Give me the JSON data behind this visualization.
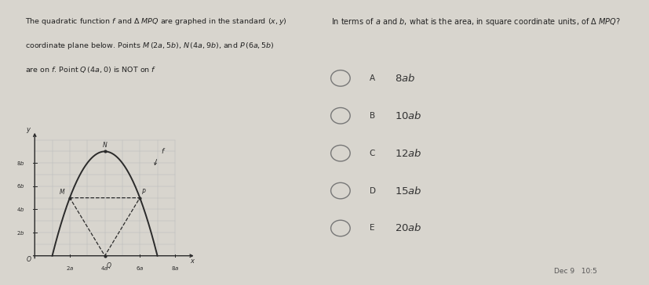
{
  "bg_color": "#d8d5ce",
  "panel_bg": "#f0eeea",
  "left_text_lines": [
    "The quadratic function $f$ and $\\Delta\\ MPQ$ are graphed in the standard $(x, y)$",
    "coordinate plane below. Points $M\\,(2a, 5b)$, $N\\,(4a, 9b)$, and $P\\,(6a, 5b)$",
    "are on $f$. Point $Q\\,(4a, 0)$ is NOT on $f$"
  ],
  "right_question": "In terms of $a$ and $b$, what is the area, in square coordinate units, of $\\Delta\\ MPQ$?",
  "choices": [
    [
      "A",
      "8ab"
    ],
    [
      "B",
      "10ab"
    ],
    [
      "C",
      "12ab"
    ],
    [
      "D",
      "15ab"
    ],
    [
      "E",
      "20ab"
    ]
  ],
  "graph_color": "#2a2a2a",
  "grid_color": "#bbbbbb",
  "text_color": "#222222",
  "choice_text_color": "#333333",
  "radio_color": "#777777",
  "border_color": "#ccccaa"
}
